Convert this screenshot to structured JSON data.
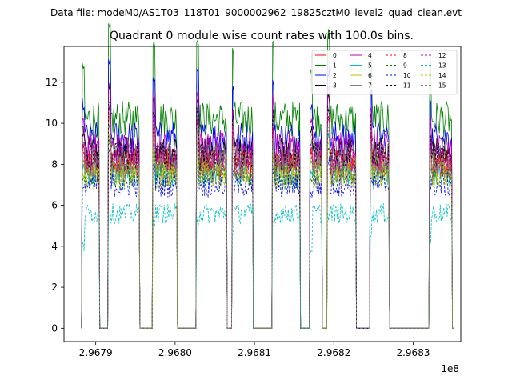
{
  "suptitle": "Data file: modeM0/AS1T03_118T01_9000002962_19825cztM0_level2_quad_clean.evt",
  "chart_data": {
    "type": "line",
    "title": "Quadrant 0 module wise count rates with 100.0s bins.",
    "xlabel": "",
    "ylabel": "",
    "x_offset_label": "1e8",
    "xlim": [
      2.96786,
      2.96836
    ],
    "ylim": [
      -0.65,
      13.75
    ],
    "xticks": [
      2.9679,
      2.968,
      2.9681,
      2.9682,
      2.9683
    ],
    "xtick_labels": [
      "2.9679",
      "2.9680",
      "2.9681",
      "2.9682",
      "2.9683"
    ],
    "yticks": [
      0,
      2,
      4,
      6,
      8,
      10,
      12
    ],
    "ytick_labels": [
      "0",
      "2",
      "4",
      "6",
      "8",
      "10",
      "12"
    ],
    "legend_position": "top-right",
    "grid": false,
    "segments": [
      {
        "start": 2.967883,
        "end": 2.967904,
        "spike": 10.2
      },
      {
        "start": 2.967916,
        "end": 2.967955,
        "spike": 12.1
      },
      {
        "start": 2.967972,
        "end": 2.968002,
        "spike": 11.5
      },
      {
        "start": 2.968027,
        "end": 2.968065,
        "spike": 11.6
      },
      {
        "start": 2.968072,
        "end": 2.968098,
        "spike": 11.0
      },
      {
        "start": 2.968122,
        "end": 2.968158,
        "spike": 11.3
      },
      {
        "start": 2.96817,
        "end": 2.968185,
        "spike": 10.2
      },
      {
        "start": 2.968192,
        "end": 2.968228,
        "spike": 11.8
      },
      {
        "start": 2.968245,
        "end": 2.96827,
        "spike": 11.0
      },
      {
        "start": 2.96832,
        "end": 2.968349,
        "spike": 10.5
      }
    ],
    "gap_value": 0,
    "series": [
      {
        "name": "0",
        "color": "#ff0000",
        "dash": "solid",
        "level": 8.1
      },
      {
        "name": "1",
        "color": "#008000",
        "dash": "solid",
        "level": 10.2
      },
      {
        "name": "2",
        "color": "#0000ff",
        "dash": "solid",
        "level": 9.3
      },
      {
        "name": "3",
        "color": "#000000",
        "dash": "solid",
        "level": 8.6
      },
      {
        "name": "4",
        "color": "#bf00bf",
        "dash": "solid",
        "level": 8.8
      },
      {
        "name": "5",
        "color": "#00bfbf",
        "dash": "solid",
        "level": 7.6
      },
      {
        "name": "6",
        "color": "#bfbf00",
        "dash": "solid",
        "level": 7.8
      },
      {
        "name": "7",
        "color": "#808080",
        "dash": "solid",
        "level": 8.3
      },
      {
        "name": "8",
        "color": "#ff0000",
        "dash": "dashed",
        "level": 8.0
      },
      {
        "name": "9",
        "color": "#008000",
        "dash": "dashed",
        "level": 7.4
      },
      {
        "name": "10",
        "color": "#0000ff",
        "dash": "dashed",
        "level": 7.0
      },
      {
        "name": "11",
        "color": "#000000",
        "dash": "dashed",
        "level": 8.4
      },
      {
        "name": "12",
        "color": "#bf00bf",
        "dash": "dashed",
        "level": 8.2
      },
      {
        "name": "13",
        "color": "#00bfbf",
        "dash": "dashed",
        "level": 5.6
      },
      {
        "name": "14",
        "color": "#bfbf00",
        "dash": "dashed",
        "level": 7.5
      },
      {
        "name": "15",
        "color": "#808080",
        "dash": "dashed",
        "level": 7.8
      }
    ]
  }
}
